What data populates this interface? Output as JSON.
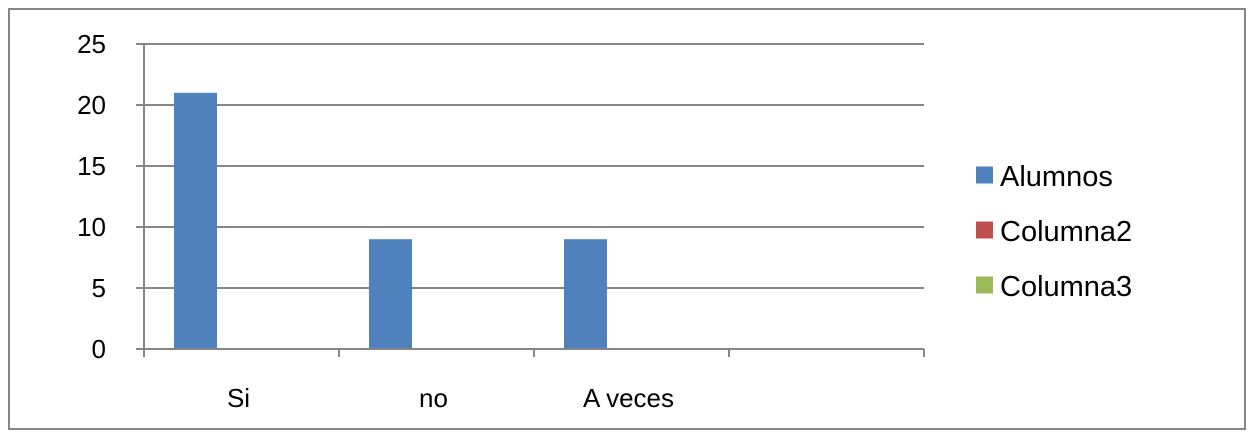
{
  "chart_data": {
    "type": "bar",
    "categories": [
      "Si",
      "no",
      "A veces",
      ""
    ],
    "series": [
      {
        "name": "Alumnos",
        "values": [
          21,
          9,
          9,
          null
        ],
        "color": "#4F81BD"
      },
      {
        "name": "Columna2",
        "values": [
          null,
          null,
          null,
          null
        ],
        "color": "#C0504D"
      },
      {
        "name": "Columna3",
        "values": [
          null,
          null,
          null,
          null
        ],
        "color": "#9BBB59"
      }
    ],
    "yticks": [
      "0",
      "5",
      "10",
      "15",
      "20",
      "25"
    ],
    "ylim": [
      0,
      25
    ],
    "grid": true,
    "legend_position": "right"
  }
}
